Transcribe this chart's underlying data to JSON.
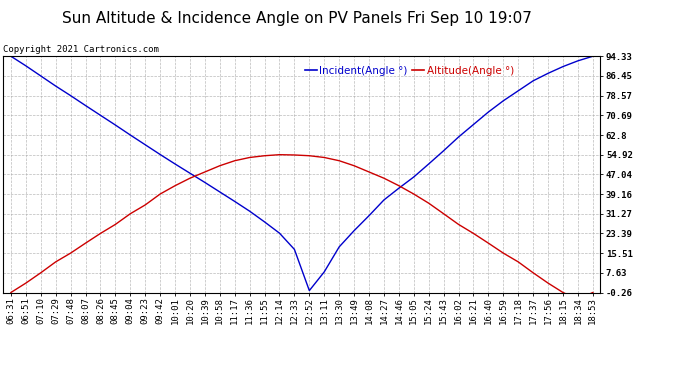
{
  "title": "Sun Altitude & Incidence Angle on PV Panels Fri Sep 10 19:07",
  "copyright": "Copyright 2021 Cartronics.com",
  "legend_incident": "Incident(Angle °)",
  "legend_altitude": "Altitude(Angle °)",
  "yticks": [
    -0.26,
    7.63,
    15.51,
    23.39,
    31.27,
    39.16,
    47.04,
    54.92,
    62.8,
    70.69,
    78.57,
    86.45,
    94.33
  ],
  "ylim": [
    -0.26,
    94.33
  ],
  "time_labels": [
    "06:31",
    "06:51",
    "07:10",
    "07:29",
    "07:48",
    "08:07",
    "08:26",
    "08:45",
    "09:04",
    "09:23",
    "09:42",
    "10:01",
    "10:20",
    "10:39",
    "10:58",
    "11:17",
    "11:36",
    "11:55",
    "12:14",
    "12:33",
    "12:52",
    "13:11",
    "13:30",
    "13:49",
    "14:08",
    "14:27",
    "14:46",
    "15:05",
    "15:24",
    "15:43",
    "16:02",
    "16:21",
    "16:40",
    "16:59",
    "17:18",
    "17:37",
    "17:56",
    "18:15",
    "18:34",
    "18:53"
  ],
  "incident_values": [
    94.33,
    90.5,
    86.45,
    82.4,
    78.57,
    74.6,
    70.69,
    66.8,
    62.8,
    58.9,
    55.0,
    51.2,
    47.5,
    43.8,
    40.0,
    36.2,
    32.3,
    28.0,
    23.5,
    17.0,
    0.5,
    8.0,
    18.0,
    24.5,
    30.5,
    36.8,
    41.5,
    46.0,
    51.2,
    56.5,
    62.0,
    67.0,
    72.0,
    76.5,
    80.5,
    84.5,
    87.5,
    90.2,
    92.5,
    94.33
  ],
  "altitude_values": [
    -0.26,
    3.5,
    7.63,
    12.0,
    15.51,
    19.5,
    23.39,
    27.0,
    31.27,
    34.8,
    39.16,
    42.5,
    45.5,
    48.0,
    50.5,
    52.5,
    53.8,
    54.5,
    54.92,
    54.8,
    54.5,
    53.8,
    52.5,
    50.5,
    48.0,
    45.5,
    42.5,
    39.16,
    35.5,
    31.27,
    27.0,
    23.39,
    19.5,
    15.51,
    12.0,
    7.63,
    3.5,
    -0.26,
    -3.0,
    -0.26
  ],
  "incident_color": "#0000CC",
  "altitude_color": "#CC0000",
  "bg_color": "#FFFFFF",
  "grid_color": "#AAAAAA",
  "title_fontsize": 11,
  "tick_fontsize": 6.5,
  "legend_fontsize": 7.5,
  "copyright_fontsize": 6.5
}
